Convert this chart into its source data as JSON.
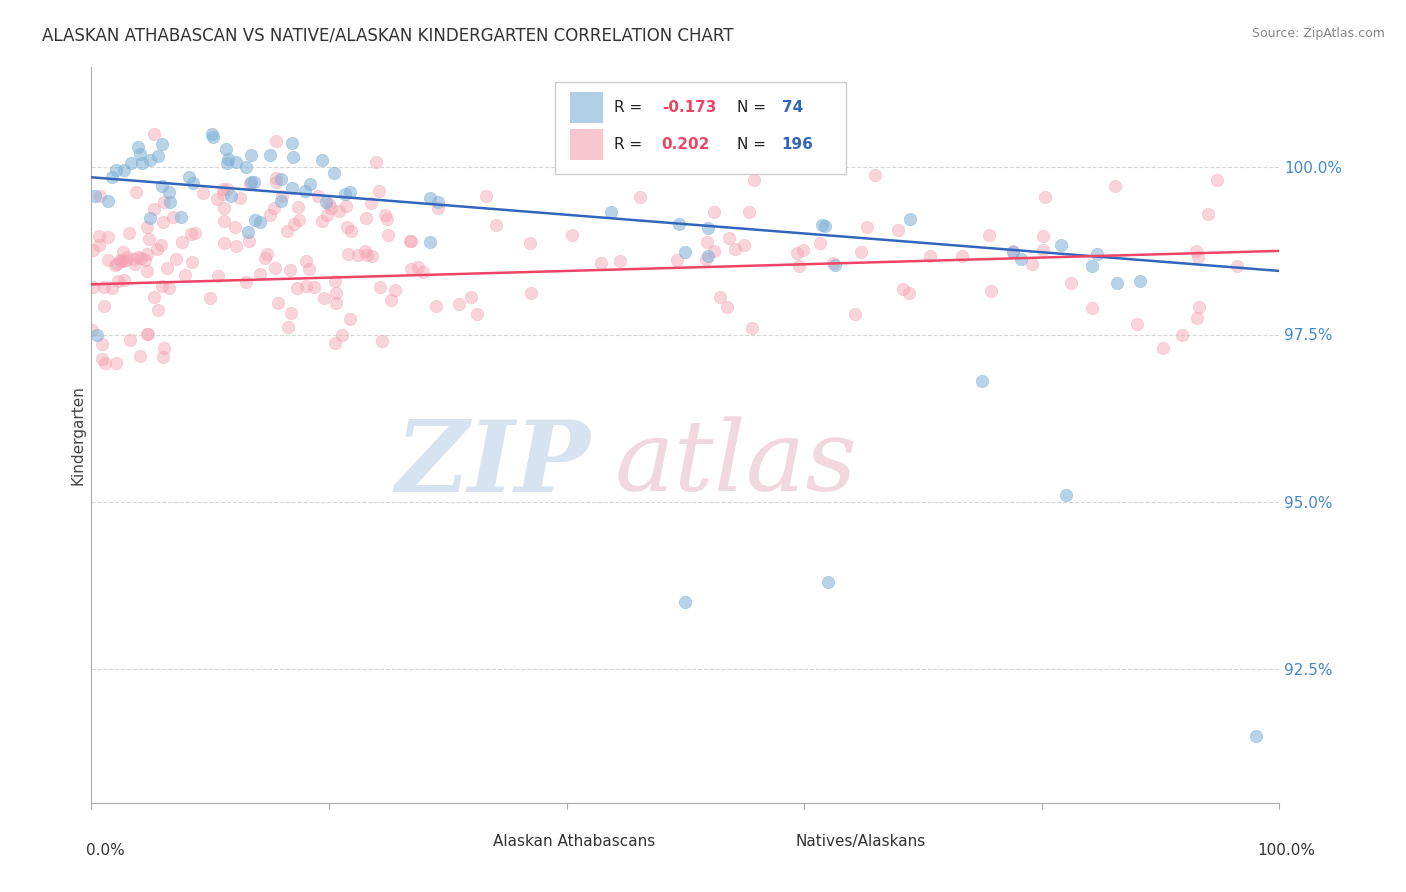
{
  "title": "ALASKAN ATHABASCAN VS NATIVE/ALASKAN KINDERGARTEN CORRELATION CHART",
  "source": "Source: ZipAtlas.com",
  "ylabel": "Kindergarten",
  "xlim": [
    0.0,
    100.0
  ],
  "ylim": [
    90.5,
    101.5
  ],
  "blue_R": -0.173,
  "blue_N": 74,
  "pink_R": 0.202,
  "pink_N": 196,
  "blue_color": "#7EB0D5",
  "pink_color": "#F4A0B0",
  "blue_line_color": "#3366BB",
  "pink_line_color": "#EE4466",
  "blue_tick_color": "#4488CC",
  "legend_label_blue": "Alaskan Athabascans",
  "legend_label_pink": "Natives/Alaskans",
  "background_color": "#ffffff",
  "grid_color": "#cccccc",
  "yticks": [
    92.5,
    95.0,
    97.5,
    100.0
  ],
  "ytick_labels": [
    "92.5%",
    "95.0%",
    "97.5%",
    "100.0%"
  ],
  "blue_trend_x0": 0,
  "blue_trend_x1": 100,
  "blue_trend_y0": 99.85,
  "blue_trend_y1": 98.45,
  "pink_trend_y0": 98.25,
  "pink_trend_y1": 98.75
}
